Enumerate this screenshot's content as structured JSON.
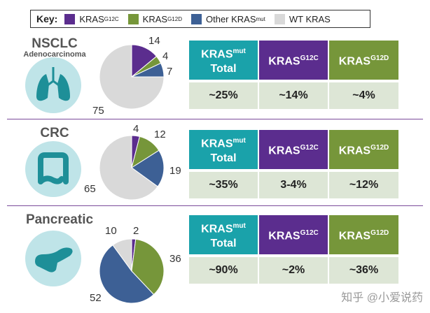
{
  "key": {
    "title": "Key:",
    "items": [
      {
        "name": "KRAS",
        "sup": "G12C",
        "color": "#5b2d8e"
      },
      {
        "name": "KRAS",
        "sup": "G12D",
        "color": "#76963a"
      },
      {
        "name": "Other KRAS",
        "sup": "mut",
        "color": "#3d6095"
      },
      {
        "name": "WT KRAS",
        "sup": "",
        "color": "#d9d9d9"
      }
    ]
  },
  "table_header": {
    "col1_main": "KRAS",
    "col1_sup": "mut",
    "col1_line2": "Total",
    "col2_main": "KRAS",
    "col2_sup": "G12C",
    "col3_main": "KRAS",
    "col3_sup": "G12D",
    "colors": {
      "total": "#1aa2aa",
      "g12c": "#5b2d8e",
      "g12d": "#76963a"
    }
  },
  "sections": [
    {
      "title": "NSCLC",
      "subtitle": "Adenocarcinoma",
      "organ_icon": "lungs-icon",
      "labels": [
        "14",
        "4",
        "7",
        "75"
      ],
      "values": [
        "~25%",
        "~14%",
        "~4%"
      ]
    },
    {
      "title": "CRC",
      "subtitle": "",
      "organ_icon": "colon-icon",
      "labels": [
        "4",
        "12",
        "19",
        "65"
      ],
      "values": [
        "~35%",
        "3-4%",
        "~12%"
      ]
    },
    {
      "title": "Pancreatic",
      "subtitle": "",
      "organ_icon": "pancreas-icon",
      "labels": [
        "2",
        "36",
        "52",
        "10"
      ],
      "values": [
        "~90%",
        "~2%",
        "~36%"
      ]
    }
  ],
  "chart_data": [
    {
      "type": "pie",
      "title": "NSCLC Adenocarcinoma",
      "categories": [
        "KRAS G12C",
        "KRAS G12D",
        "Other KRAS mut",
        "WT KRAS"
      ],
      "values": [
        14,
        4,
        7,
        75
      ]
    },
    {
      "type": "pie",
      "title": "CRC",
      "categories": [
        "KRAS G12C",
        "KRAS G12D",
        "Other KRAS mut",
        "WT KRAS"
      ],
      "values": [
        4,
        12,
        19,
        65
      ]
    },
    {
      "type": "pie",
      "title": "Pancreatic",
      "categories": [
        "KRAS G12C",
        "KRAS G12D",
        "Other KRAS mut",
        "WT KRAS"
      ],
      "values": [
        2,
        36,
        52,
        10
      ]
    }
  ],
  "watermark": "知乎 @小爱说药",
  "divider_color": "#7a4a9a"
}
